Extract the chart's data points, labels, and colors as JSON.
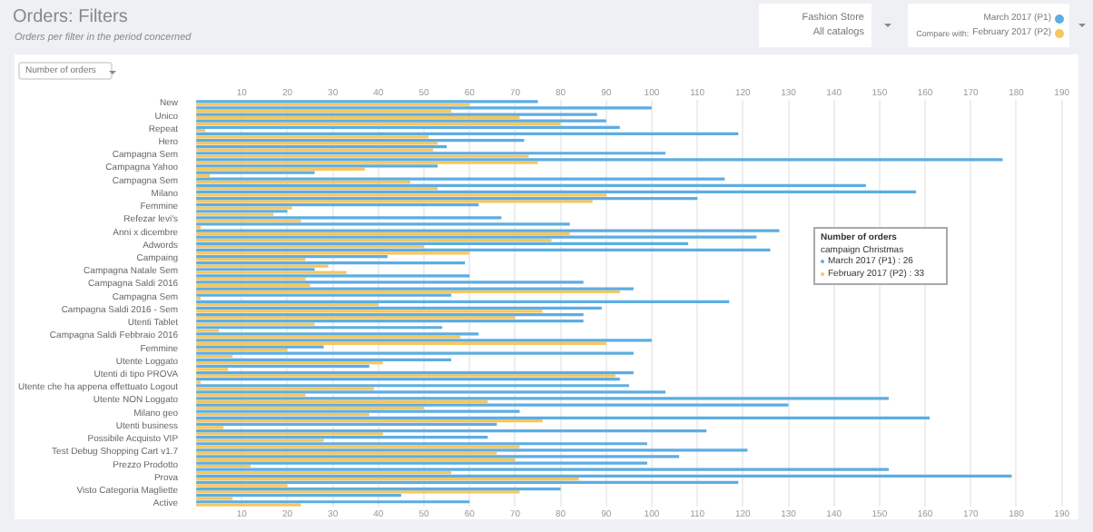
{
  "chart_data": {
    "type": "bar",
    "orientation": "horizontal",
    "title": "Orders: Filters",
    "subtitle": "Orders per filter in the period concerned",
    "categories": [
      "New",
      null,
      "Unico",
      null,
      "Repeat",
      null,
      "Hero",
      null,
      "Campagna Sem",
      null,
      "Campagna Yahoo",
      null,
      "Campagna Sem",
      null,
      "Milano",
      null,
      "Femmine",
      null,
      "Refezar levi's",
      null,
      "Anni x dicembre",
      null,
      "Adwords",
      null,
      "Campaing",
      null,
      "Campagna Natale Sem",
      null,
      "Campagna Saldi 2016",
      null,
      "Campagna Sem",
      null,
      "Campagna Saldi 2016 - Sem",
      null,
      "Utenti Tablet",
      null,
      "Campagna Saldi Febbraio 2016",
      null,
      "Femmine",
      null,
      "Utente Loggato",
      null,
      "Utenti di tipo PROVA",
      null,
      "Utente che ha appena effettuato Logout",
      null,
      "Utente NON Loggato",
      null,
      "Milano geo",
      null,
      "Utenti business",
      null,
      "Possibile Acquisto VIP",
      null,
      "Test Debug Shopping Cart v1.7",
      null,
      "Prezzo Prodotto",
      null,
      "Prova",
      null,
      "Visto Categoria Magliette",
      null,
      "Active"
    ],
    "series": [
      {
        "name": "March 2017 (P1)",
        "color": "#5dade2",
        "values": [
          75,
          100,
          88,
          90,
          93,
          119,
          72,
          55,
          103,
          177,
          53,
          26,
          116,
          147,
          158,
          110,
          62,
          20,
          67,
          82,
          128,
          123,
          108,
          126,
          42,
          59,
          26,
          60,
          85,
          96,
          56,
          117,
          89,
          85,
          85,
          54,
          62,
          100,
          28,
          96,
          56,
          38,
          96,
          93,
          95,
          103,
          152,
          130,
          71,
          161,
          66,
          112,
          64,
          99,
          121,
          106,
          99,
          152,
          179,
          119,
          80,
          45,
          60
        ]
      },
      {
        "name": "February 2017 (P2)",
        "color": "#f8c65c",
        "values": [
          60,
          56,
          71,
          80,
          2,
          51,
          53,
          52,
          73,
          75,
          37,
          3,
          47,
          53,
          90,
          87,
          21,
          17,
          23,
          1,
          82,
          78,
          50,
          60,
          24,
          29,
          33,
          24,
          25,
          93,
          1,
          40,
          76,
          70,
          26,
          5,
          58,
          90,
          20,
          8,
          41,
          7,
          92,
          1,
          39,
          24,
          64,
          50,
          38,
          76,
          6,
          41,
          28,
          71,
          66,
          70,
          12,
          56,
          84,
          20,
          71,
          8,
          23
        ]
      }
    ],
    "xlim": [
      0,
      190
    ],
    "xticks": [
      10,
      20,
      30,
      40,
      50,
      60,
      70,
      80,
      90,
      100,
      110,
      120,
      130,
      140,
      150,
      160,
      170,
      180,
      190
    ],
    "x2lim": [
      0,
      190
    ],
    "x2ticks": [
      10,
      20,
      30,
      40,
      50,
      60,
      70,
      80,
      90,
      100,
      110,
      120,
      130,
      140,
      150,
      160,
      170,
      180,
      190
    ],
    "grid": "x",
    "legend": "top right",
    "annotations": [
      "Fashion Store",
      "All catalogs",
      "Compare with:",
      "Number of orders",
      "Number of orders",
      "campaign Christmas",
      "March 2017 (P1) : 26",
      "February 2017 (P2) : 33"
    ]
  }
}
